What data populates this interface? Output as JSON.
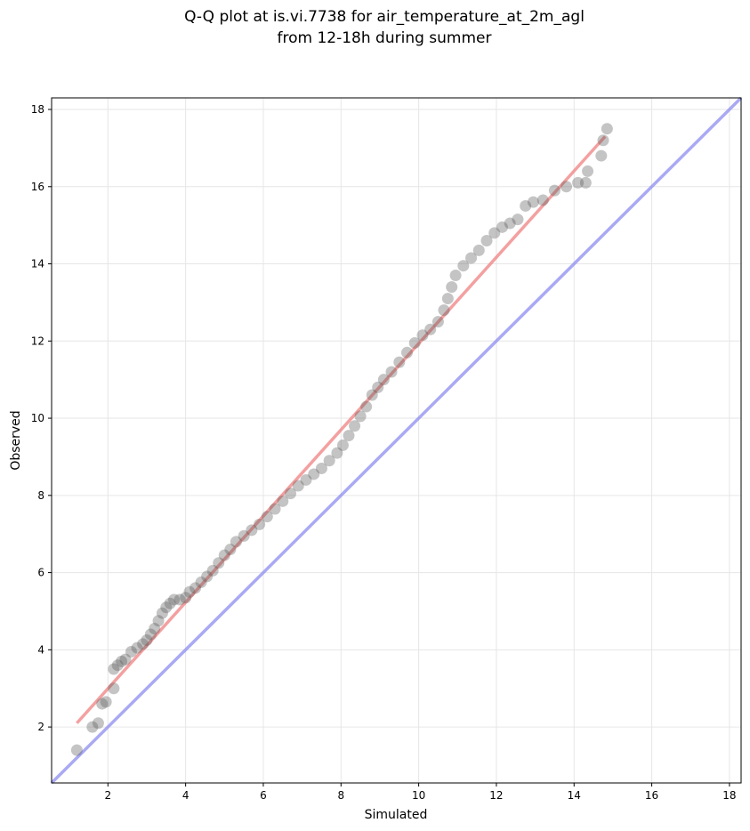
{
  "chart_data": {
    "type": "scatter",
    "title": "Q-Q plot at is.vi.7738 for air_temperature_at_2m_agl\nfrom 12-18h during summer",
    "title_lines": [
      "Q-Q plot at is.vi.7738 for air_temperature_at_2m_agl",
      "from 12-18h during summer"
    ],
    "xlabel": "Simulated",
    "ylabel": "Observed",
    "xlim": [
      0.55,
      18.3
    ],
    "ylim": [
      0.55,
      18.3
    ],
    "xticks": [
      2,
      4,
      6,
      8,
      10,
      12,
      14,
      16,
      18
    ],
    "yticks": [
      2,
      4,
      6,
      8,
      10,
      12,
      14,
      16,
      18
    ],
    "grid": true,
    "legend": "none",
    "colors": {
      "points": "#555555",
      "fit_line": "#f08080",
      "identity_line": "#8c8cf0",
      "grid": "#e6e6e6"
    },
    "series": [
      {
        "kind": "quantile_points",
        "points": [
          [
            1.2,
            1.4
          ],
          [
            1.6,
            2.0
          ],
          [
            1.75,
            2.1
          ],
          [
            1.85,
            2.6
          ],
          [
            1.95,
            2.65
          ],
          [
            2.15,
            3.0
          ],
          [
            2.15,
            3.5
          ],
          [
            2.25,
            3.6
          ],
          [
            2.35,
            3.7
          ],
          [
            2.45,
            3.75
          ],
          [
            2.6,
            3.95
          ],
          [
            2.75,
            4.05
          ],
          [
            2.9,
            4.15
          ],
          [
            3.0,
            4.25
          ],
          [
            3.1,
            4.4
          ],
          [
            3.2,
            4.55
          ],
          [
            3.3,
            4.75
          ],
          [
            3.4,
            4.95
          ],
          [
            3.5,
            5.1
          ],
          [
            3.6,
            5.2
          ],
          [
            3.7,
            5.3
          ],
          [
            3.85,
            5.3
          ],
          [
            4.0,
            5.35
          ],
          [
            4.1,
            5.5
          ],
          [
            4.25,
            5.6
          ],
          [
            4.4,
            5.75
          ],
          [
            4.55,
            5.9
          ],
          [
            4.7,
            6.05
          ],
          [
            4.85,
            6.25
          ],
          [
            5.0,
            6.45
          ],
          [
            5.15,
            6.6
          ],
          [
            5.3,
            6.8
          ],
          [
            5.5,
            6.95
          ],
          [
            5.7,
            7.1
          ],
          [
            5.9,
            7.25
          ],
          [
            6.1,
            7.45
          ],
          [
            6.3,
            7.65
          ],
          [
            6.5,
            7.85
          ],
          [
            6.7,
            8.05
          ],
          [
            6.9,
            8.25
          ],
          [
            7.1,
            8.4
          ],
          [
            7.3,
            8.55
          ],
          [
            7.5,
            8.7
          ],
          [
            7.7,
            8.9
          ],
          [
            7.9,
            9.1
          ],
          [
            8.05,
            9.3
          ],
          [
            8.2,
            9.55
          ],
          [
            8.35,
            9.8
          ],
          [
            8.5,
            10.05
          ],
          [
            8.65,
            10.3
          ],
          [
            8.8,
            10.6
          ],
          [
            8.95,
            10.8
          ],
          [
            9.1,
            11.0
          ],
          [
            9.3,
            11.2
          ],
          [
            9.5,
            11.45
          ],
          [
            9.7,
            11.7
          ],
          [
            9.9,
            11.95
          ],
          [
            10.1,
            12.15
          ],
          [
            10.3,
            12.3
          ],
          [
            10.5,
            12.5
          ],
          [
            10.65,
            12.8
          ],
          [
            10.75,
            13.1
          ],
          [
            10.85,
            13.4
          ],
          [
            10.95,
            13.7
          ],
          [
            11.15,
            13.95
          ],
          [
            11.35,
            14.15
          ],
          [
            11.55,
            14.35
          ],
          [
            11.75,
            14.6
          ],
          [
            11.95,
            14.8
          ],
          [
            12.15,
            14.95
          ],
          [
            12.35,
            15.05
          ],
          [
            12.55,
            15.15
          ],
          [
            12.75,
            15.5
          ],
          [
            12.95,
            15.6
          ],
          [
            13.2,
            15.65
          ],
          [
            13.5,
            15.9
          ],
          [
            13.8,
            16.0
          ],
          [
            14.1,
            16.1
          ],
          [
            14.3,
            16.1
          ],
          [
            14.35,
            16.4
          ],
          [
            14.7,
            16.8
          ],
          [
            14.75,
            17.2
          ],
          [
            14.85,
            17.5
          ]
        ]
      },
      {
        "kind": "fit_line",
        "points": [
          [
            1.2,
            2.1
          ],
          [
            14.8,
            17.3
          ]
        ]
      },
      {
        "kind": "identity_line",
        "points": [
          [
            0.55,
            0.55
          ],
          [
            18.3,
            18.3
          ]
        ]
      }
    ]
  }
}
